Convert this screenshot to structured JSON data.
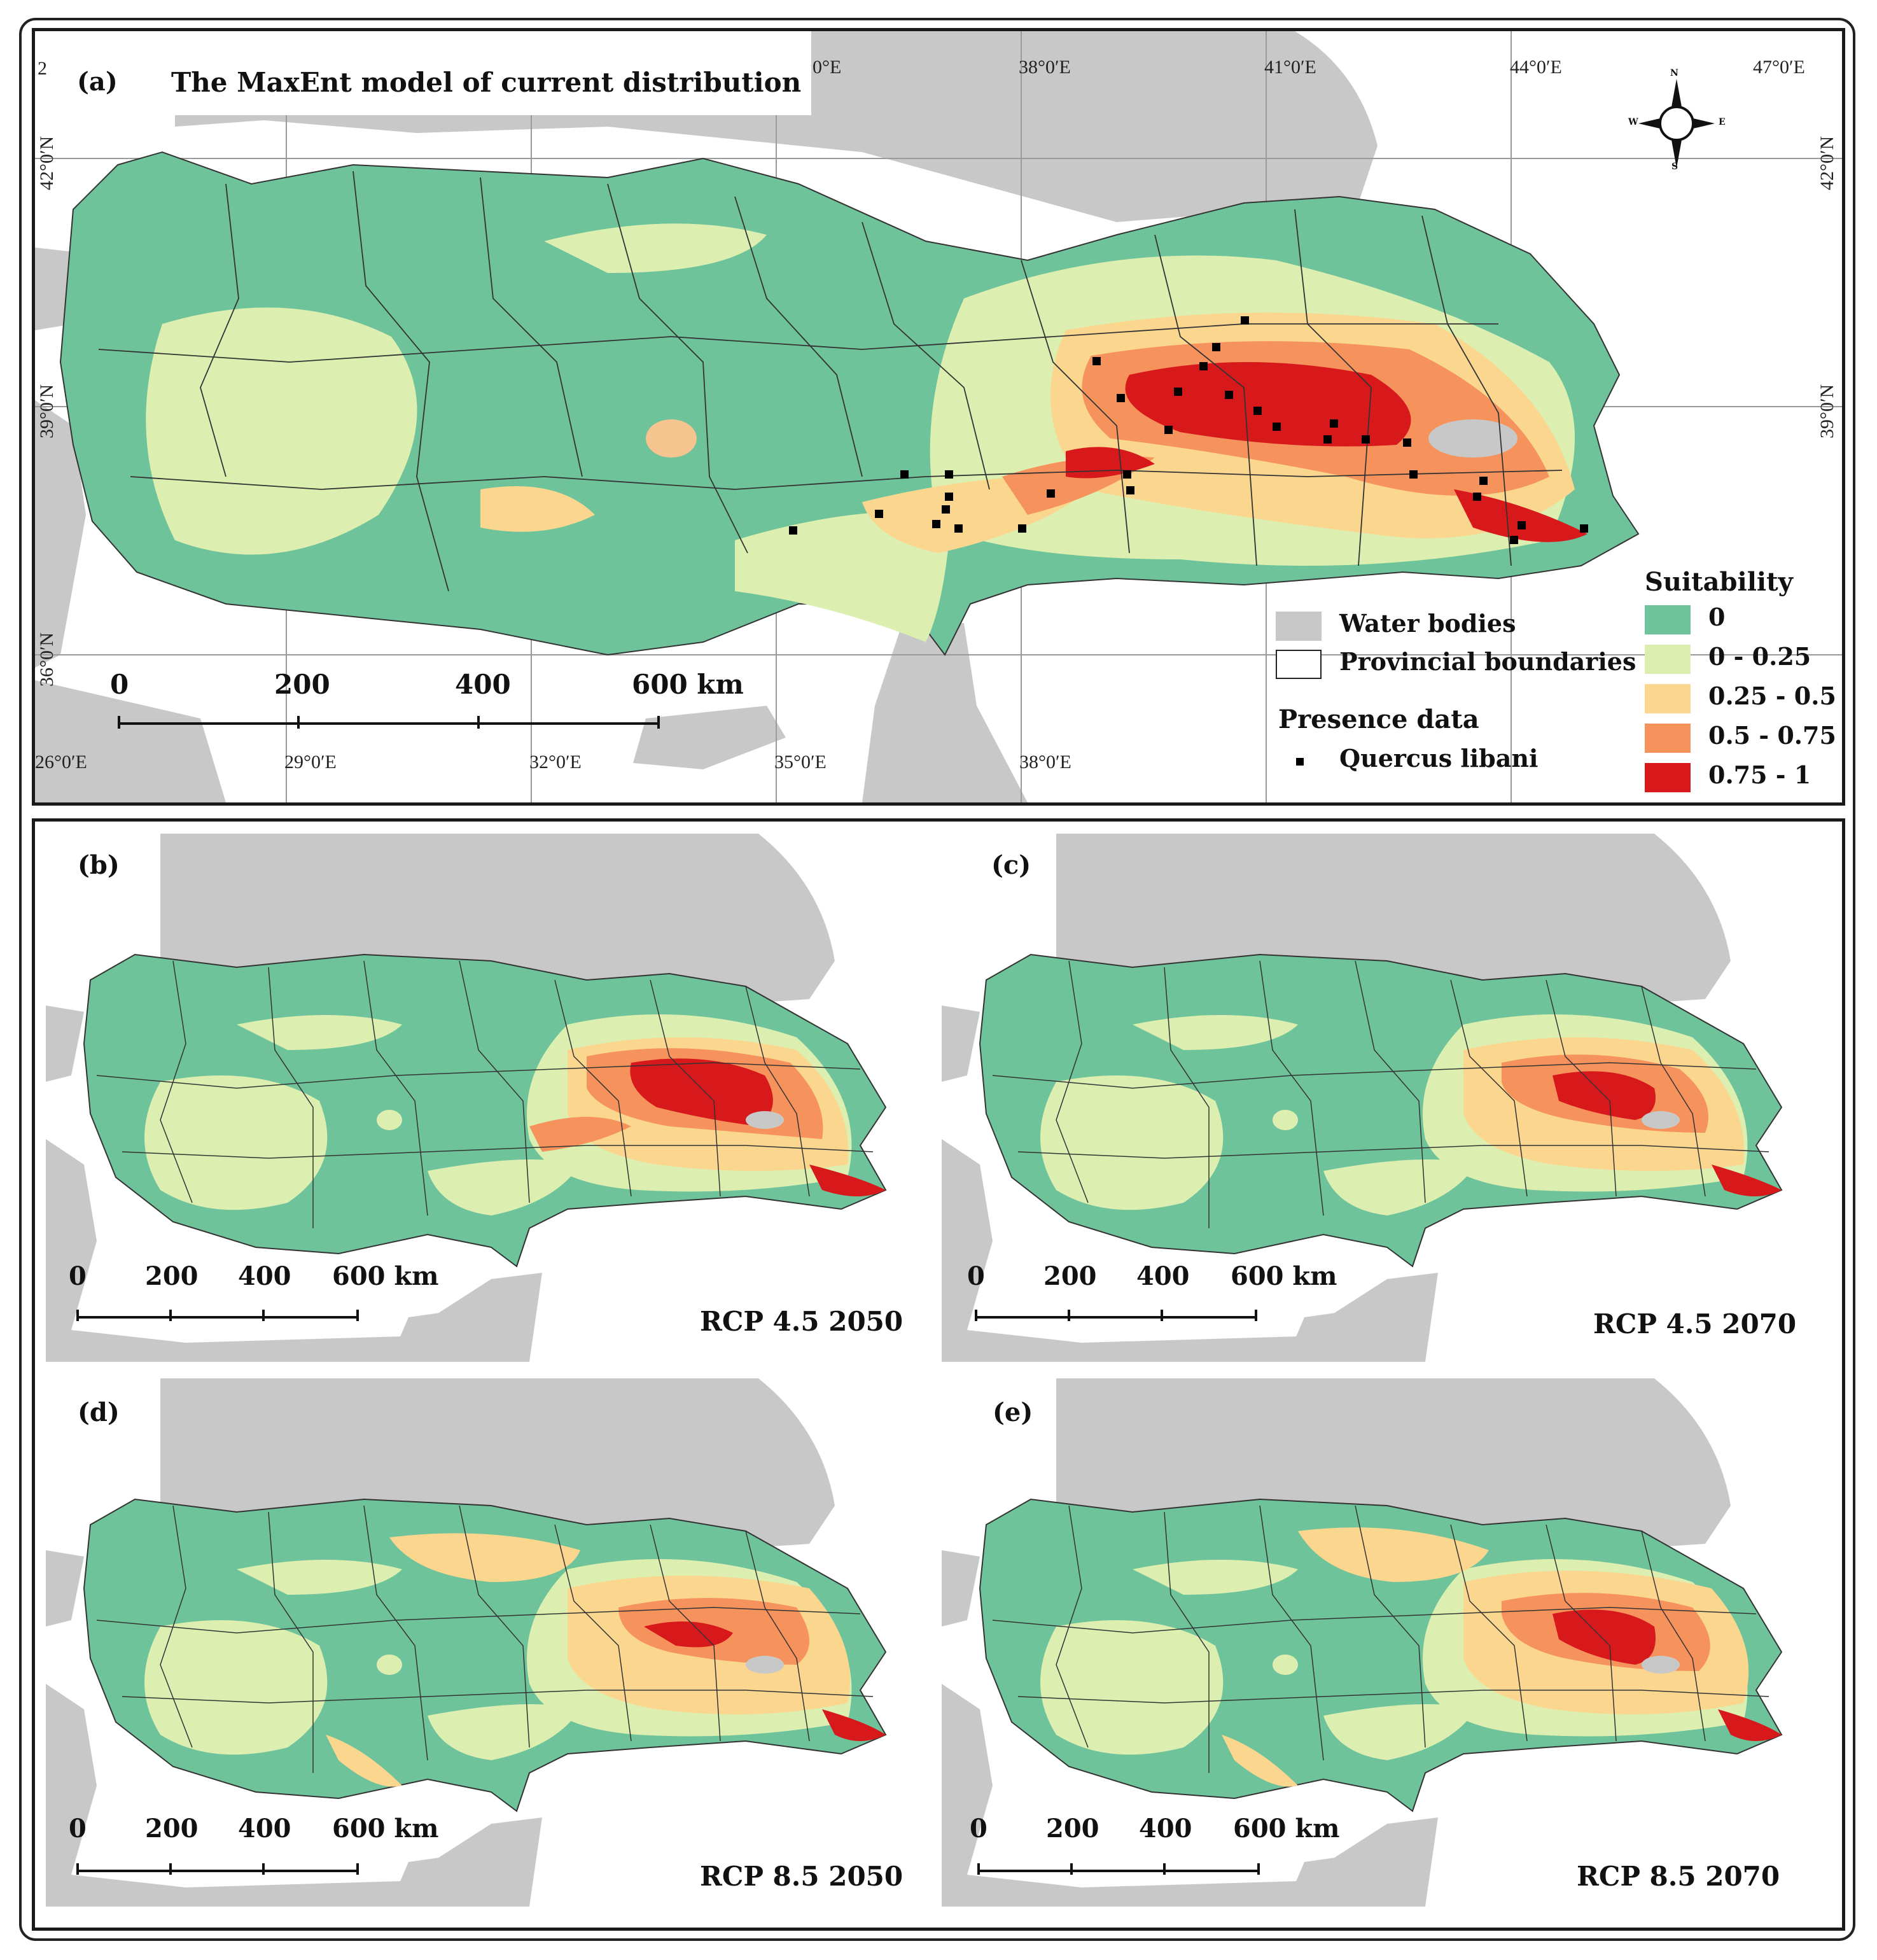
{
  "panels": {
    "a": {
      "letter": "(a)",
      "title": "The MaxEnt model of current distribution",
      "lon_top": [
        "0°E",
        "38°0′E",
        "41°0′E",
        "44°0′E",
        "47°0′E"
      ],
      "lon_bottom": [
        "26°0′E",
        "29°0′E",
        "32°0′E",
        "35°0′E",
        "38°0′E"
      ],
      "lat_left": [
        "42°0′N",
        "39°0′N",
        "36°0′N"
      ],
      "lat_right": [
        "42°0′N",
        "39°0′N"
      ],
      "corner_num": "2",
      "scale": [
        "0",
        "200",
        "400",
        "600 km"
      ]
    },
    "b": {
      "letter": "(b)",
      "scenario": "RCP 4.5 2050",
      "scale": [
        "0",
        "200",
        "400",
        "600 km"
      ]
    },
    "c": {
      "letter": "(c)",
      "scenario": "RCP 4.5 2070",
      "scale": [
        "0",
        "200",
        "400",
        "600 km"
      ]
    },
    "d": {
      "letter": "(d)",
      "scenario": "RCP 8.5 2050",
      "scale": [
        "0",
        "200",
        "400",
        "600 km"
      ]
    },
    "e": {
      "letter": "(e)",
      "scenario": "RCP 8.5 2070",
      "scale": [
        "0",
        "200",
        "400",
        "600 km"
      ]
    }
  },
  "legend": {
    "water": "Water bodies",
    "boundaries": "Provincial boundaries",
    "presence_title": "Presence data",
    "presence_item": "Quercus libani",
    "suitability_title": "Suitability",
    "classes": [
      {
        "label": "0",
        "color": "#6fc39a"
      },
      {
        "label": "0 - 0.25",
        "color": "#dcefb0"
      },
      {
        "label": "0.25 - 0.5",
        "color": "#fbd68f"
      },
      {
        "label": "0.5 - 0.75",
        "color": "#f6935c"
      },
      {
        "label": "0.75 - 1",
        "color": "#d7191c"
      }
    ]
  },
  "compass": {
    "n": "N",
    "s": "S",
    "e": "E",
    "w": "W"
  },
  "colors": {
    "water": "#c8c8c8",
    "land_outside": "#c8c8c8",
    "boundary": "#222222"
  }
}
